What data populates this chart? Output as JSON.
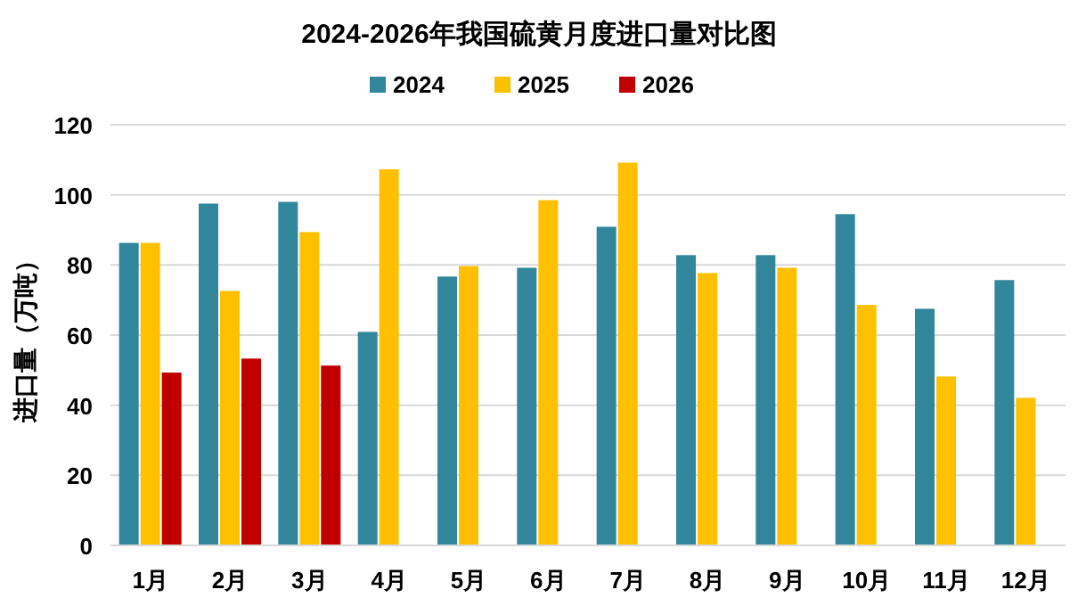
{
  "chart_data": {
    "type": "bar",
    "title": "2024-2026年我国硫黄月度进口量对比图",
    "ylabel": "进口量（万吨）",
    "categories": [
      "1月",
      "2月",
      "3月",
      "4月",
      "5月",
      "6月",
      "7月",
      "8月",
      "9月",
      "10月",
      "11月",
      "12月"
    ],
    "series": [
      {
        "name": "2024",
        "color": "#31869b",
        "values": [
          86.3,
          97.5,
          98,
          60.9,
          76.7,
          79.2,
          90.9,
          82.8,
          82.8,
          94.5,
          67.5,
          75.7
        ]
      },
      {
        "name": "2025",
        "color": "#ffc000",
        "values": [
          86.3,
          72.6,
          89.4,
          107.3,
          79.7,
          98.5,
          109.2,
          77.7,
          79.2,
          68.6,
          48.2,
          42.1
        ]
      },
      {
        "name": "2026",
        "color": "#c00000",
        "values": [
          49.3,
          53.3,
          51.3,
          null,
          null,
          null,
          null,
          null,
          null,
          null,
          null,
          null
        ]
      }
    ],
    "ylim": [
      0,
      120
    ],
    "yticks": [
      0,
      20,
      40,
      60,
      80,
      100,
      120
    ],
    "grid": "y",
    "legend": "top"
  }
}
